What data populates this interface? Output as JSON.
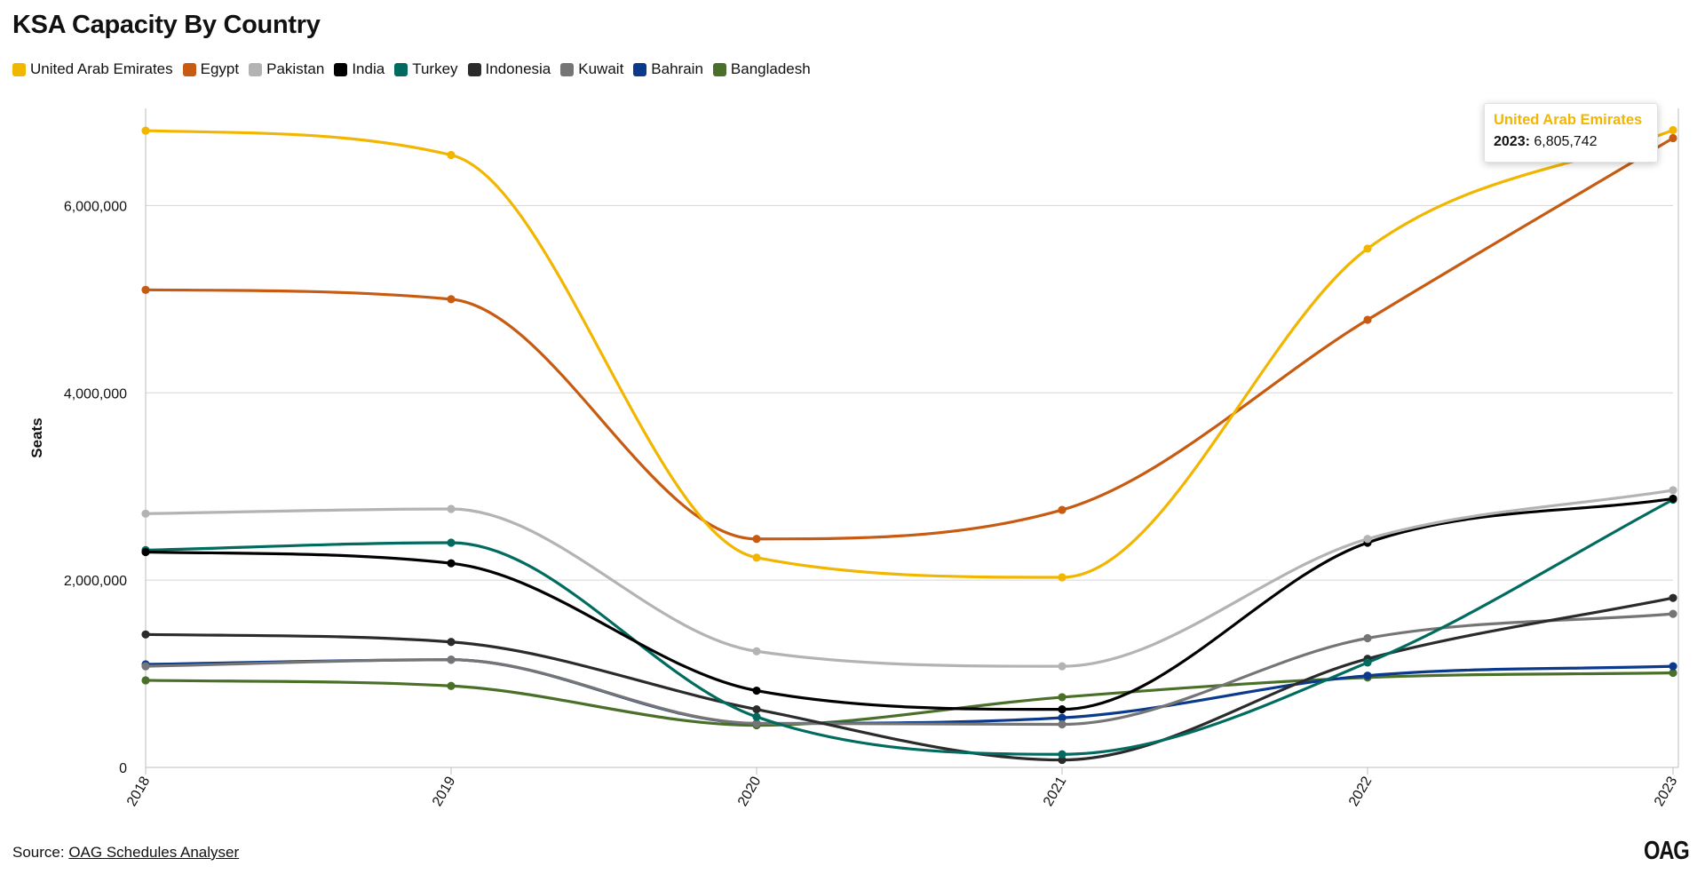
{
  "page": {
    "title": "KSA Capacity By Country",
    "source_prefix": "Source: ",
    "source_link": "OAG Schedules Analyser",
    "logo": "OAG"
  },
  "tooltip": {
    "series": "United Arab Emirates",
    "year": "2023:",
    "value": "6,805,742"
  },
  "chart_data": {
    "type": "line",
    "title": "KSA Capacity By Country",
    "xlabel": "",
    "ylabel": "Seats",
    "x": [
      "2018",
      "2019",
      "2020",
      "2021",
      "2022",
      "2023"
    ],
    "ylim": [
      0,
      7000000
    ],
    "yticks": [
      0,
      2000000,
      4000000,
      6000000
    ],
    "ytick_labels": [
      "0",
      "2,000,000",
      "4,000,000",
      "6,000,000"
    ],
    "grid": true,
    "legend_position": "top-left",
    "series": [
      {
        "name": "United Arab Emirates",
        "color": "#f2b600",
        "values": [
          6800000,
          6540000,
          2240000,
          2030000,
          5540000,
          6805742
        ]
      },
      {
        "name": "Egypt",
        "color": "#c75b12",
        "values": [
          5100000,
          5000000,
          2440000,
          2750000,
          4780000,
          6720000
        ]
      },
      {
        "name": "Pakistan",
        "color": "#b3b3b3",
        "values": [
          2710000,
          2760000,
          1240000,
          1080000,
          2440000,
          2960000
        ]
      },
      {
        "name": "India",
        "color": "#000000",
        "values": [
          2300000,
          2180000,
          820000,
          620000,
          2400000,
          2870000
        ]
      },
      {
        "name": "Turkey",
        "color": "#006b5e",
        "values": [
          2320000,
          2400000,
          540000,
          140000,
          1120000,
          2860000
        ]
      },
      {
        "name": "Indonesia",
        "color": "#2b2b2b",
        "values": [
          1420000,
          1340000,
          620000,
          80000,
          1160000,
          1810000
        ]
      },
      {
        "name": "Kuwait",
        "color": "#757575",
        "values": [
          1080000,
          1150000,
          470000,
          460000,
          1380000,
          1640000
        ]
      },
      {
        "name": "Bahrain",
        "color": "#0b3a8c",
        "values": [
          1100000,
          1150000,
          470000,
          530000,
          980000,
          1080000
        ]
      },
      {
        "name": "Bangladesh",
        "color": "#4a6f28",
        "values": [
          930000,
          870000,
          450000,
          750000,
          960000,
          1010000
        ]
      }
    ]
  }
}
